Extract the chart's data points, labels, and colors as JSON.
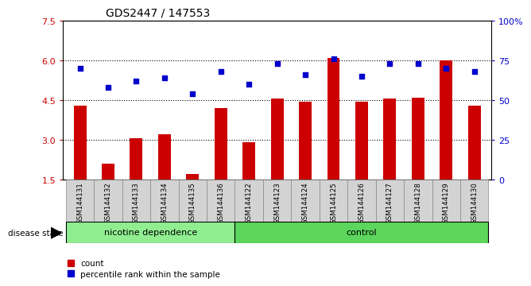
{
  "title": "GDS2447 / 147553",
  "samples": [
    "GSM144131",
    "GSM144132",
    "GSM144133",
    "GSM144134",
    "GSM144135",
    "GSM144136",
    "GSM144122",
    "GSM144123",
    "GSM144124",
    "GSM144125",
    "GSM144126",
    "GSM144127",
    "GSM144128",
    "GSM144129",
    "GSM144130"
  ],
  "bar_values": [
    4.3,
    2.1,
    3.05,
    3.2,
    1.7,
    4.2,
    2.9,
    4.55,
    4.45,
    6.1,
    4.45,
    4.55,
    4.6,
    6.0,
    4.3
  ],
  "dot_values": [
    70,
    58,
    62,
    64,
    54,
    68,
    60,
    73,
    66,
    76,
    65,
    73,
    73,
    70,
    68
  ],
  "bar_color": "#cc0000",
  "dot_color": "#0000cc",
  "ylim_left": [
    1.5,
    7.5
  ],
  "ylim_right": [
    0,
    100
  ],
  "yticks_left": [
    1.5,
    3.0,
    4.5,
    6.0,
    7.5
  ],
  "yticks_right": [
    0,
    25,
    50,
    75,
    100
  ],
  "grid_lines": [
    3.0,
    4.5,
    6.0
  ],
  "group1_label": "nicotine dependence",
  "group2_label": "control",
  "group1_count": 6,
  "group2_count": 9,
  "disease_label": "disease state",
  "legend_count_label": "count",
  "legend_pct_label": "percentile rank within the sample",
  "group1_color": "#90ee90",
  "group2_color": "#5cd65c",
  "sample_box_color": "#d3d3d3",
  "plot_bg": "#ffffff"
}
